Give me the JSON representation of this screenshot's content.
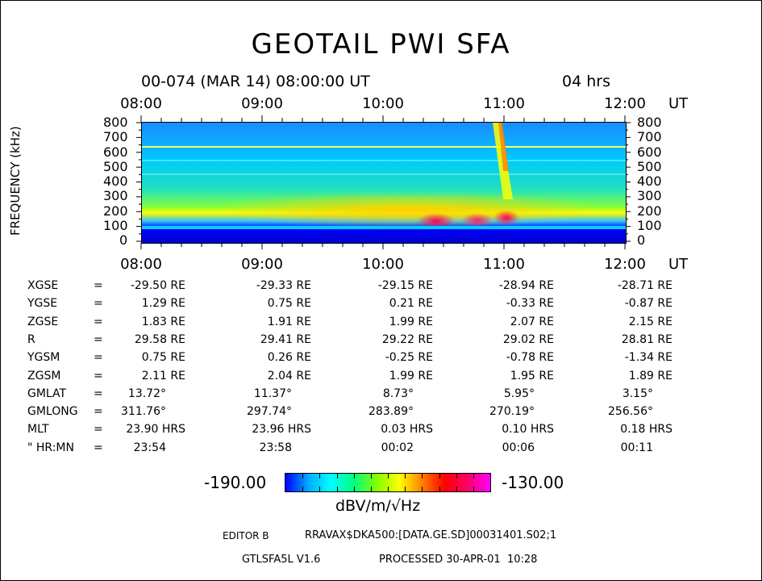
{
  "chart_data": {
    "type": "heatmap",
    "title": "GEOTAIL PWI SFA",
    "subtitle_left": "00-074 (MAR 14) 08:00:00 UT",
    "subtitle_right": "04 hrs",
    "ylabel": "FREQUENCY (kHz)",
    "x_unit": "UT",
    "x_ticks": [
      "08:00",
      "09:00",
      "10:00",
      "11:00",
      "12:00"
    ],
    "y_ticks": [
      "800",
      "700",
      "600",
      "500",
      "400",
      "300",
      "200",
      "100",
      "0"
    ],
    "ylim": [
      0,
      800
    ],
    "colorbar": {
      "min_label": "-190.00",
      "max_label": "-130.00",
      "unit_label": "dBV/m/√Hz",
      "colors": [
        "#0000ff",
        "#00ffff",
        "#00ff80",
        "#ffff00",
        "#ff0000",
        "#ff00ff"
      ]
    }
  },
  "ephemeris": {
    "rows": [
      {
        "label": "XGSE",
        "sep": "=",
        "values": [
          "-29.50 RE",
          "-29.33 RE",
          "-29.15 RE",
          "-28.94 RE",
          "-28.71 RE"
        ]
      },
      {
        "label": "YGSE",
        "sep": "=",
        "values": [
          "1.29 RE",
          "0.75 RE",
          "0.21 RE",
          "-0.33 RE",
          "-0.87 RE"
        ]
      },
      {
        "label": "ZGSE",
        "sep": "=",
        "values": [
          "1.83 RE",
          "1.91 RE",
          "1.99 RE",
          "2.07 RE",
          "2.15 RE"
        ]
      },
      {
        "label": "R",
        "sep": "=",
        "values": [
          "29.58 RE",
          "29.41 RE",
          "29.22 RE",
          "29.02 RE",
          "28.81 RE"
        ]
      },
      {
        "label": "YGSM",
        "sep": "=",
        "values": [
          "0.75 RE",
          "0.26 RE",
          "-0.25 RE",
          "-0.78 RE",
          "-1.34 RE"
        ]
      },
      {
        "label": "ZGSM",
        "sep": "=",
        "values": [
          "2.11 RE",
          "2.04 RE",
          "1.99 RE",
          "1.95 RE",
          "1.89 RE"
        ]
      },
      {
        "label": "GMLAT",
        "sep": "=",
        "values": [
          "13.72°",
          "11.37°",
          "8.73°",
          "5.95°",
          "3.15°"
        ]
      },
      {
        "label": "GMLONG",
        "sep": "=",
        "values": [
          "311.76°",
          "297.74°",
          "283.89°",
          "270.19°",
          "256.56°"
        ]
      },
      {
        "label": "MLT",
        "sep": "=",
        "values": [
          "23.90 HRS",
          "23.96 HRS",
          "0.03 HRS",
          "0.10 HRS",
          "0.18 HRS"
        ]
      },
      {
        "label": "\" HR:MN",
        "sep": "=",
        "values": [
          "23:54",
          "23:58",
          "00:02",
          "00:06",
          "00:11"
        ]
      }
    ]
  },
  "footer": {
    "editor": "EDITOR B",
    "path": "RRAVAX$DKA500:[DATA.GE.SD]00031401.S02;1",
    "version": "GTLSFA5L V1.6",
    "processed": "PROCESSED 30-APR-01  10:28"
  }
}
